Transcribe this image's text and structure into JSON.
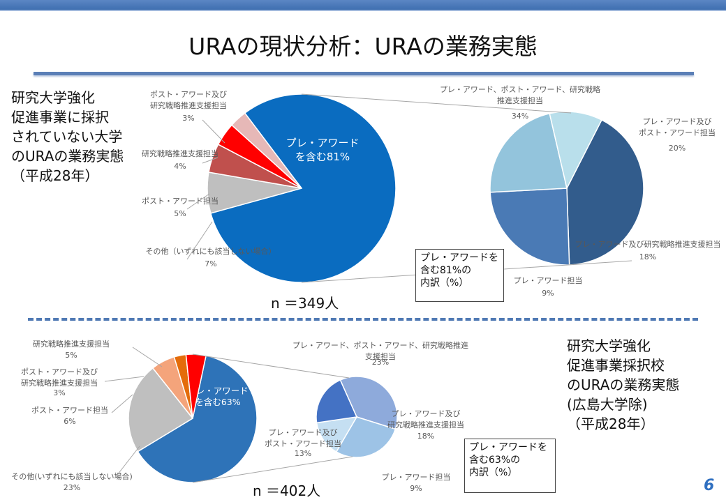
{
  "title": "URAの現状分析：URAの業務実態",
  "top_description": "研究大学強化\n促進事業に採択\nされていない大学\nのURAの業務実態\n（平成28年）",
  "bottom_description": "研究大学強化\n促進事業採択校\nのURAの業務実態\n(広島大学除)\n（平成28年）",
  "top_n": "n ＝349人",
  "bottom_n": "n ＝402人",
  "top_box": "プレ・アワードを\n含む81%の\n内訳（%）",
  "bottom_box": "プレ・アワードを\n含む63%の\n内訳（%）",
  "page_number": "6",
  "chart_data": [
    {
      "type": "pie",
      "name": "top_main",
      "slices": [
        {
          "label": "プレ・アワード\nを含む81%",
          "value": 81,
          "color": "#0a6cc0",
          "inside": true
        },
        {
          "label": "その他（いずれにも該当しない場合）",
          "pct": "7%",
          "value": 7,
          "color": "#bfbfbf"
        },
        {
          "label": "ポスト・アワード担当",
          "pct": "5%",
          "value": 5,
          "color": "#c0504d"
        },
        {
          "label": "研究戦略推進支援担当",
          "pct": "4%",
          "value": 4,
          "color": "#ff0000"
        },
        {
          "label": "ポスト・アワード及び\n研究戦略推進支援担当",
          "pct": "3%",
          "value": 3,
          "color": "#e6b8b7"
        }
      ]
    },
    {
      "type": "pie",
      "name": "top_breakdown",
      "slices": [
        {
          "label": "プレ・アワード、ポスト・アワード、研究戦略\n推進支援担当",
          "pct": "34%",
          "value": 34,
          "color": "#325c8c"
        },
        {
          "label": "プレ・アワード及び\nポスト・アワード担当",
          "pct": "20%",
          "value": 20,
          "color": "#4a7ab5"
        },
        {
          "label": "プレ・アワード及び研究戦略推進支援担当",
          "pct": "18%",
          "value": 18,
          "color": "#93c4dc"
        },
        {
          "label": "プレ・アワード担当",
          "pct": "9%",
          "value": 9,
          "color": "#b9dfeb"
        }
      ]
    },
    {
      "type": "pie",
      "name": "bottom_main",
      "slices": [
        {
          "label": "プレ・アワード\nを含む63%",
          "value": 63,
          "color": "#2e73b8",
          "inside": true
        },
        {
          "label": "その他(いずれにも該当しない場合)",
          "pct": "23%",
          "value": 23,
          "color": "#bfbfbf"
        },
        {
          "label": "ポスト・アワード担当",
          "pct": "6%",
          "value": 6,
          "color": "#f4a47b"
        },
        {
          "label": "ポスト・アワード及び\n研究戦略推進支援担当",
          "pct": "3%",
          "value": 3,
          "color": "#e46c0a"
        },
        {
          "label": "研究戦略推進支援担当",
          "pct": "5%",
          "value": 5,
          "color": "#ff0000"
        }
      ]
    },
    {
      "type": "pie",
      "name": "bottom_breakdown",
      "slices": [
        {
          "label": "プレ・アワード、ポスト・アワード、研究戦略推進\n支援担当",
          "pct": "23%",
          "value": 23,
          "color": "#8eaadb"
        },
        {
          "label": "プレ・アワード及び\n研究戦略推進支援担当",
          "pct": "18%",
          "value": 18,
          "color": "#9dc3e6"
        },
        {
          "label": "プレ・アワード担当",
          "pct": "9%",
          "value": 9,
          "color": "#c5dff2"
        },
        {
          "label": "プレ・アワード及び\nポスト・アワード担当",
          "pct": "13%",
          "value": 13,
          "color": "#4472c4"
        }
      ]
    }
  ]
}
